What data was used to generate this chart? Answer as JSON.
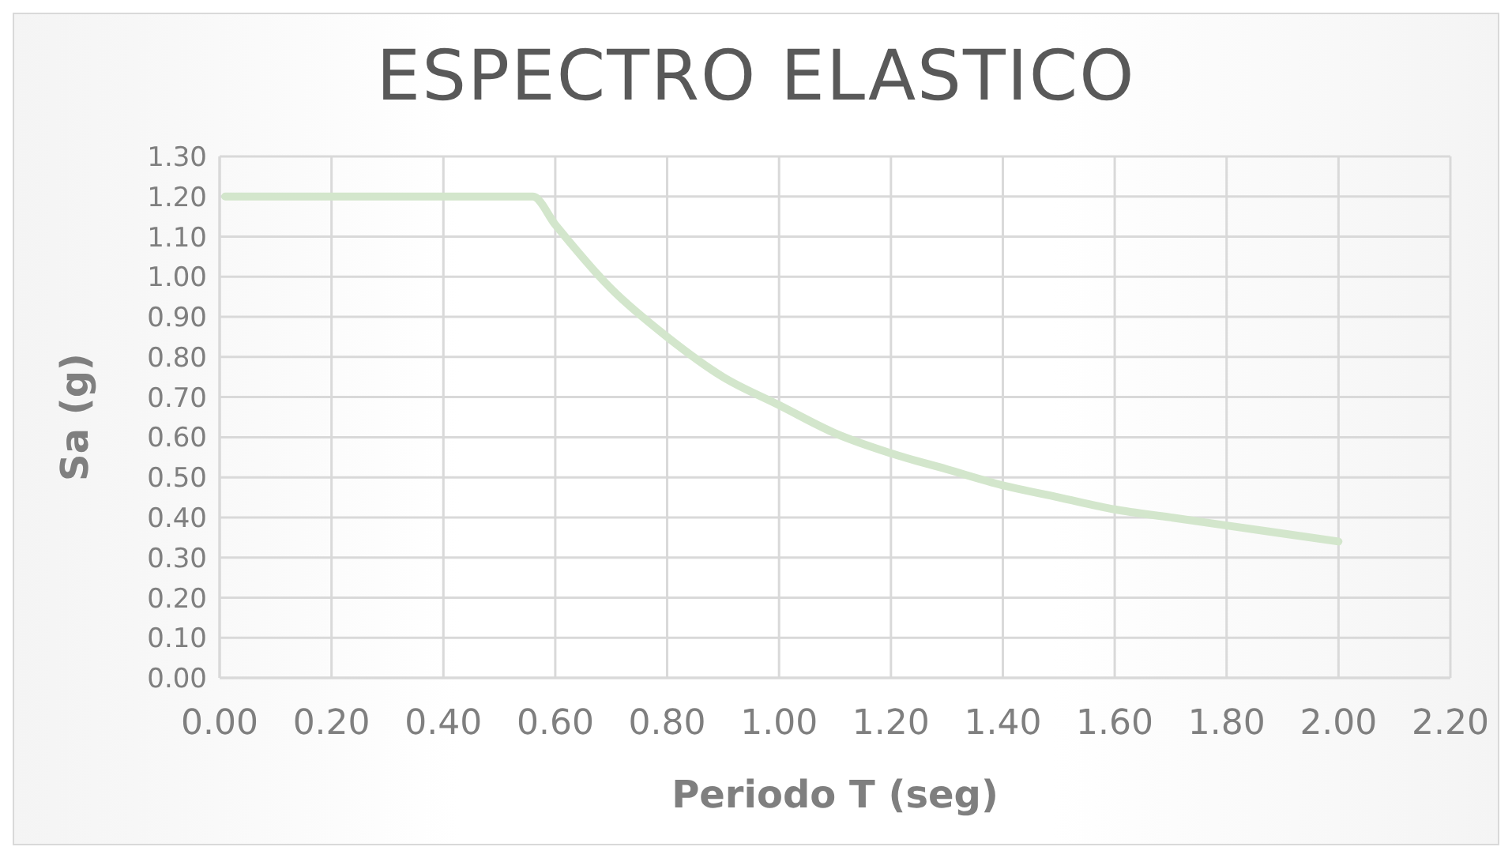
{
  "chart_data": {
    "type": "line",
    "title": "ESPECTRO ELASTICO",
    "xlabel": "Periodo T (seg)",
    "ylabel": "Sa (g)",
    "x": [
      0.01,
      0.1,
      0.2,
      0.3,
      0.4,
      0.5,
      0.56,
      0.6,
      0.7,
      0.8,
      0.9,
      1.0,
      1.1,
      1.2,
      1.3,
      1.4,
      1.5,
      1.6,
      1.7,
      1.8,
      1.9,
      2.0
    ],
    "series": [
      {
        "color": "#d3e6cc",
        "values": [
          1.2,
          1.2,
          1.2,
          1.2,
          1.2,
          1.2,
          1.2,
          1.13,
          0.97,
          0.85,
          0.75,
          0.68,
          0.61,
          0.56,
          0.52,
          0.48,
          0.45,
          0.42,
          0.4,
          0.38,
          0.36,
          0.34
        ]
      }
    ],
    "xlim": [
      0,
      2.2
    ],
    "xticks": [
      {
        "value": 0,
        "label": "0.00"
      },
      {
        "value": 0.2,
        "label": "0.20"
      },
      {
        "value": 0.4,
        "label": "0.40"
      },
      {
        "value": 0.6,
        "label": "0.60"
      },
      {
        "value": 0.8,
        "label": "0.80"
      },
      {
        "value": 1,
        "label": "1.00"
      },
      {
        "value": 1.2,
        "label": "1.20"
      },
      {
        "value": 1.4,
        "label": "1.40"
      },
      {
        "value": 1.6,
        "label": "1.60"
      },
      {
        "value": 1.8,
        "label": "1.80"
      },
      {
        "value": 2,
        "label": "2.00"
      },
      {
        "value": 2.2,
        "label": "2.20"
      }
    ],
    "ylim": [
      0,
      1.3
    ],
    "yticks": [
      {
        "value": 0,
        "label": "0.00"
      },
      {
        "value": 0.1,
        "label": "0.10"
      },
      {
        "value": 0.2,
        "label": "0.20"
      },
      {
        "value": 0.3,
        "label": "0.30"
      },
      {
        "value": 0.4,
        "label": "0.40"
      },
      {
        "value": 0.5,
        "label": "0.50"
      },
      {
        "value": 0.6,
        "label": "0.60"
      },
      {
        "value": 0.7,
        "label": "0.70"
      },
      {
        "value": 0.8,
        "label": "0.80"
      },
      {
        "value": 0.9,
        "label": "0.90"
      },
      {
        "value": 1,
        "label": "1.00"
      },
      {
        "value": 1.1,
        "label": "1.10"
      },
      {
        "value": 1.2,
        "label": "1.20"
      },
      {
        "value": 1.3,
        "label": "1.30"
      }
    ],
    "grid": true,
    "marker": "none",
    "line_style": "solid"
  }
}
